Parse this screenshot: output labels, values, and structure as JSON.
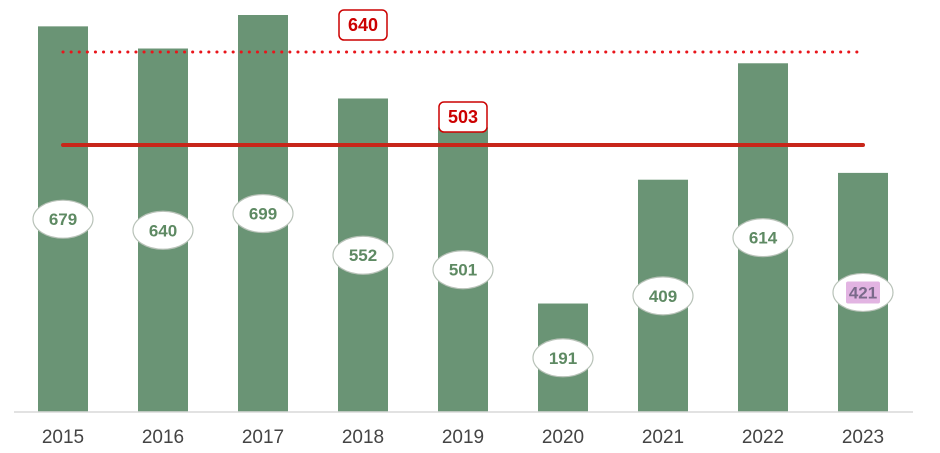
{
  "chart_data": {
    "type": "bar",
    "categories": [
      "2015",
      "2016",
      "2017",
      "2018",
      "2019",
      "2020",
      "2021",
      "2022",
      "2023"
    ],
    "values": [
      679,
      640,
      699,
      552,
      501,
      191,
      409,
      614,
      421
    ],
    "value_labels": [
      "679",
      "640",
      "699",
      "552",
      "501",
      "191",
      "409",
      "614",
      "421"
    ],
    "highlighted_label_index": 8,
    "reference_lines": [
      {
        "value": 640,
        "label": "640",
        "style": "dotted",
        "color": "#e8151b"
      },
      {
        "value": 503,
        "label": "503",
        "style": "solid",
        "color": "#c8261a"
      }
    ],
    "ylim": [
      0,
      715
    ],
    "grid": false,
    "legend": "none",
    "colors": {
      "bar": "#6a9475",
      "label_text": "#5e8a63",
      "label_border": "#b8c2b8",
      "highlight_fill": "#e2b4e2",
      "highlight_text": "#7a6a8a",
      "ref_box_border": "#cc0000",
      "axis_line": "#d9d9d9",
      "tick_text": "#444444"
    }
  }
}
